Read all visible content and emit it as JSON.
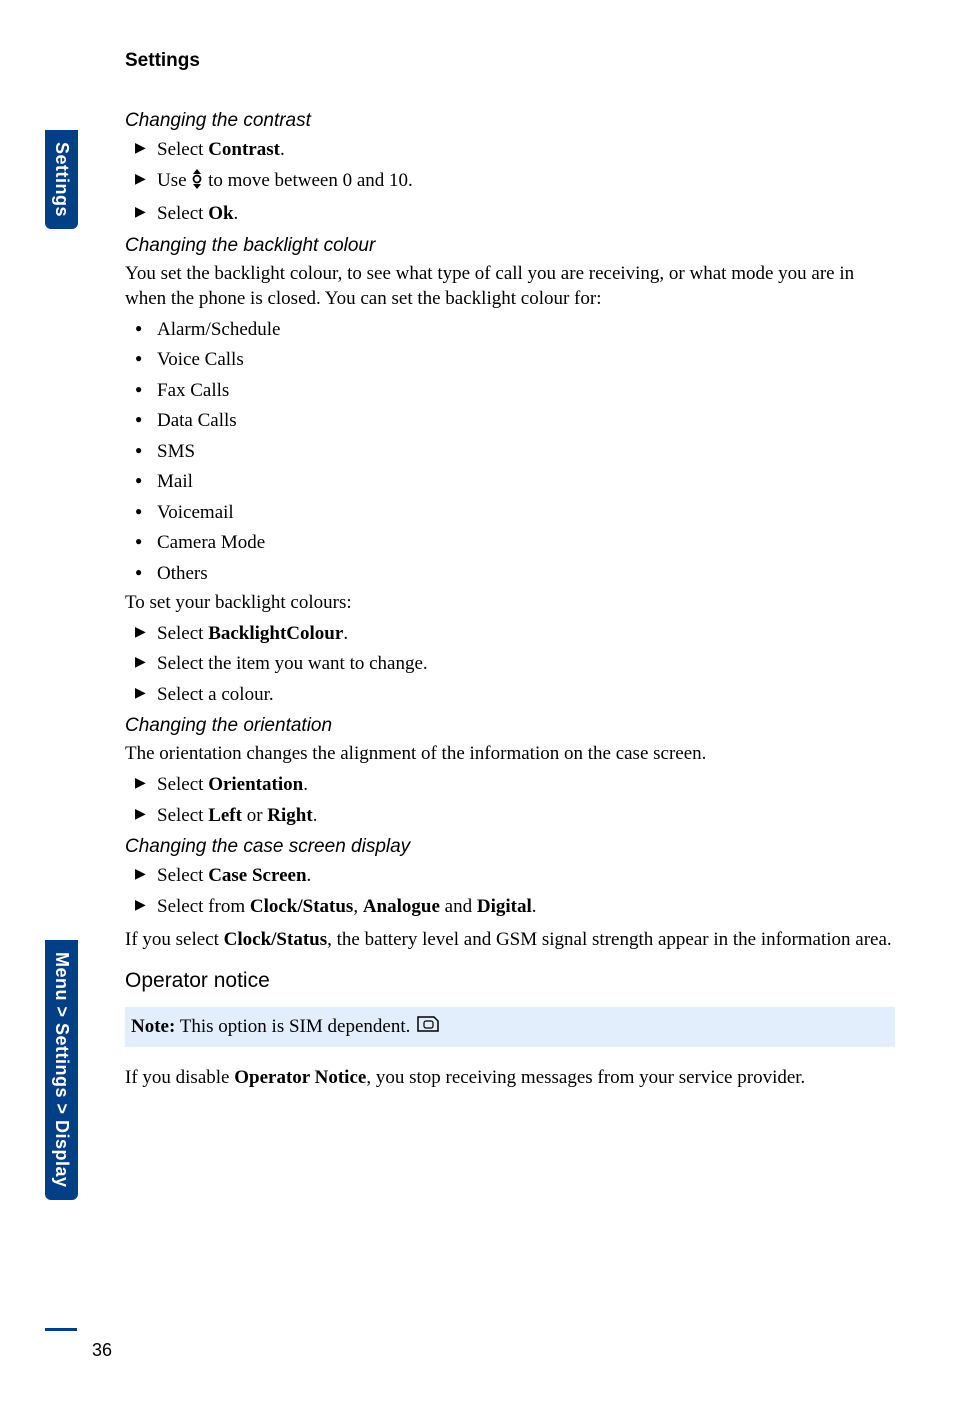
{
  "page": {
    "title": "Settings",
    "number": "36"
  },
  "sideTabs": {
    "top": "Settings",
    "bottom": "Menu > Settings > Display"
  },
  "sections": {
    "contrast": {
      "heading": "Changing the contrast",
      "step1_pre": "Select ",
      "step1_bold": "Contrast",
      "step1_post": ".",
      "step2_pre": "Use ",
      "step2_post": " to move between 0 and 10.",
      "step3_pre": "Select ",
      "step3_bold": "Ok",
      "step3_post": "."
    },
    "backlight": {
      "heading": "Changing the backlight colour",
      "intro": "You set the backlight colour, to see what type of call you are receiving, or what mode you are in when the phone is closed. You can set the backlight colour for:",
      "items": [
        "Alarm/Schedule",
        "Voice Calls",
        "Fax Calls",
        "Data Calls",
        "SMS",
        "Mail",
        "Voicemail",
        "Camera Mode",
        "Others"
      ],
      "setIntro": "To set your backlight colours:",
      "step1_pre": "Select ",
      "step1_bold": "BacklightColour",
      "step1_post": ".",
      "step2": "Select the item you want to change.",
      "step3": "Select a colour."
    },
    "orientation": {
      "heading": "Changing the orientation",
      "intro": "The orientation changes the alignment of the information on the case screen.",
      "step1_pre": "Select ",
      "step1_bold": "Orientation",
      "step1_post": ".",
      "step2_pre": "Select ",
      "step2_bold1": "Left",
      "step2_mid": " or ",
      "step2_bold2": "Right",
      "step2_post": "."
    },
    "caseScreen": {
      "heading": "Changing the case screen display",
      "step1_pre": "Select ",
      "step1_bold": "Case Screen",
      "step1_post": ".",
      "step2_pre": "Select from ",
      "step2_bold1": "Clock/Status",
      "step2_mid1": ", ",
      "step2_bold2": "Analogue",
      "step2_mid2": " and ",
      "step2_bold3": "Digital",
      "step2_post": ".",
      "after_pre": "If you select ",
      "after_bold": "Clock/Status",
      "after_post": ", the battery level and GSM signal strength appear in the information area."
    },
    "operator": {
      "heading": "Operator notice",
      "note_bold": "Note:",
      "note_text": " This option is SIM dependent. ",
      "after_pre": "If you disable ",
      "after_bold": "Operator Notice",
      "after_post": ", you stop receiving messages from your service provider."
    }
  },
  "style": {
    "sideTabWidth": 32,
    "ruleWidth": 32
  }
}
